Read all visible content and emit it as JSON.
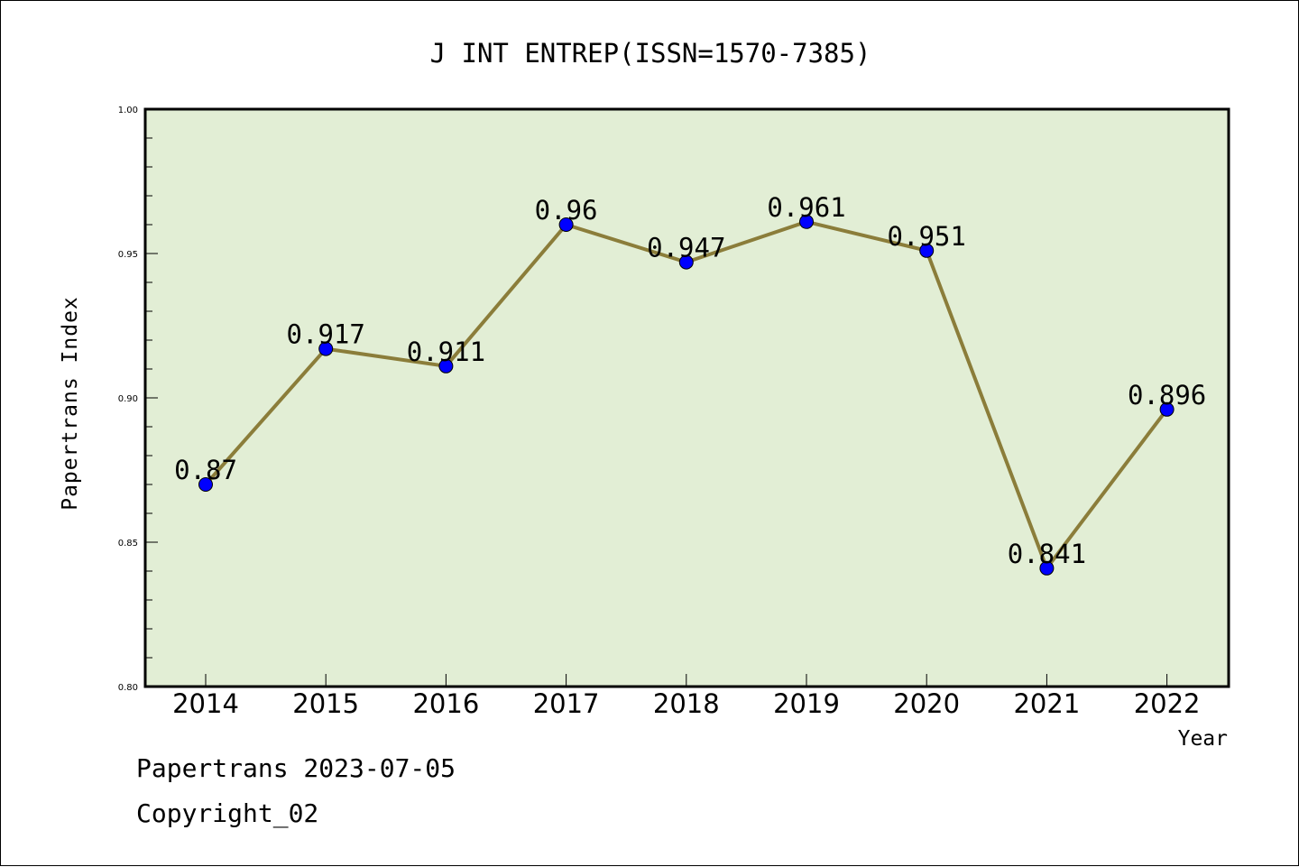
{
  "chart_data": {
    "type": "line",
    "title": "J INT ENTREP(ISSN=1570-7385)",
    "xlabel": "Year",
    "ylabel": "Papertrans Index",
    "categories": [
      "2014",
      "2015",
      "2016",
      "2017",
      "2018",
      "2019",
      "2020",
      "2021",
      "2022"
    ],
    "values": [
      0.87,
      0.917,
      0.911,
      0.96,
      0.947,
      0.961,
      0.951,
      0.841,
      0.896
    ],
    "data_labels": [
      "0.87",
      "0.917",
      "0.911",
      "0.96",
      "0.947",
      "0.961",
      "0.951",
      "0.841",
      "0.896"
    ],
    "ylim": [
      0.8,
      1.0
    ],
    "yticks": [
      0.8,
      0.85,
      0.9,
      0.95,
      1.0
    ],
    "ytick_labels": [
      "0.80",
      "0.85",
      "0.90",
      "0.95",
      "1.00"
    ],
    "grid": false,
    "colors": {
      "plot_background": "#e2eed5",
      "line": "#8b7d3a",
      "marker": "#0000ff"
    }
  },
  "footer": {
    "date_line": "Papertrans 2023-07-05",
    "copyright": "Copyright_02"
  }
}
